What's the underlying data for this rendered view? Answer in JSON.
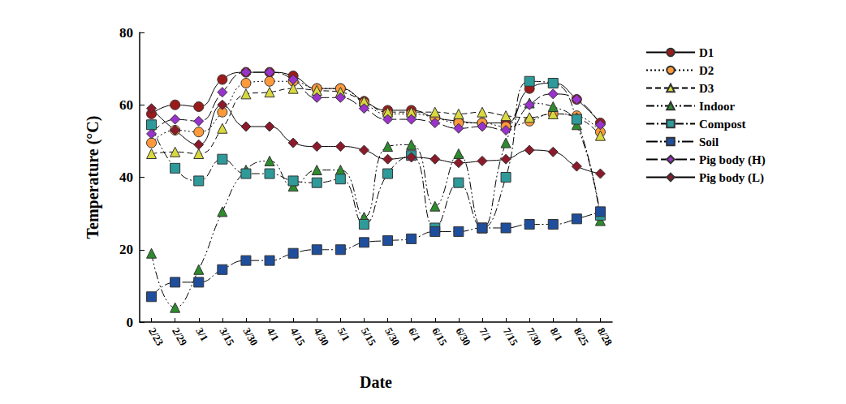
{
  "chart_data": {
    "type": "line",
    "x_label": "Date",
    "y_label": "Temperature (°C)",
    "categories": [
      "2/23",
      "2/29",
      "3/1",
      "3/15",
      "3/30",
      "4/1",
      "4/15",
      "4/30",
      "5/1",
      "5/15",
      "5/30",
      "6/1",
      "6/15",
      "6/30",
      "7/1",
      "7/15",
      "7/30",
      "8/1",
      "8/25",
      "8/28"
    ],
    "ylim": [
      0,
      80
    ],
    "yticks": [
      0,
      20,
      40,
      60,
      80
    ],
    "grid": false,
    "legend": "right",
    "series": [
      {
        "name": "D1",
        "color": "#9b1b1b",
        "marker": "circle",
        "line_style": "solid",
        "values": [
          57.5,
          60,
          59.5,
          67,
          69,
          69,
          68,
          64.5,
          64.5,
          61,
          58.5,
          58.5,
          56.5,
          55.5,
          55,
          55,
          64.5,
          66,
          61.5,
          55
        ]
      },
      {
        "name": "D2",
        "color": "#ff9a3c",
        "marker": "circle",
        "line_style": "dotted",
        "values": [
          49.5,
          53,
          52.5,
          58,
          66,
          66.5,
          66.5,
          64.5,
          64.5,
          60.5,
          57.5,
          57.5,
          56.5,
          55,
          55,
          54,
          55.5,
          57.5,
          57,
          52.5
        ]
      },
      {
        "name": "D3",
        "color": "#d9d93f",
        "marker": "triangle",
        "line_style": "dashed",
        "values": [
          46.5,
          47,
          46.5,
          53.5,
          63,
          63.5,
          64.5,
          64,
          63.5,
          61,
          58,
          58,
          58,
          57.5,
          58,
          57,
          56.5,
          57.5,
          56.5,
          51.5
        ]
      },
      {
        "name": "Indoor",
        "color": "#2e8b2e",
        "marker": "triangle",
        "line_style": "dashdotdot",
        "values": [
          19,
          4,
          14.5,
          30.5,
          42,
          44.5,
          37.5,
          42,
          42,
          29,
          48.5,
          49,
          32,
          46.5,
          26,
          49.5,
          60.5,
          59.5,
          54.5,
          28
        ]
      },
      {
        "name": "Compost",
        "color": "#2f9a9a",
        "marker": "square",
        "line_style": "dashdot",
        "values": [
          54.5,
          42.5,
          39,
          45,
          41,
          41,
          39,
          38.5,
          39.5,
          27,
          41,
          46,
          26,
          38.5,
          26,
          40,
          66.5,
          66,
          56,
          29.5
        ]
      },
      {
        "name": "Soil",
        "color": "#1f4e9c",
        "marker": "square",
        "line_style": "longdashdot",
        "values": [
          7,
          11,
          11,
          14.5,
          17,
          17,
          19,
          20,
          20,
          22,
          22.5,
          23,
          25,
          25,
          26,
          26,
          27,
          27,
          28.5,
          30.5
        ]
      },
      {
        "name": "Pig body (H)",
        "color": "#9933cc",
        "marker": "diamond",
        "line_style": "longdash",
        "values": [
          52,
          56,
          55.5,
          63.5,
          69,
          69,
          67,
          62,
          62,
          59,
          56,
          56,
          55,
          53.5,
          54,
          53,
          60,
          63,
          61.5,
          54.5
        ]
      },
      {
        "name": "Pig body (L)",
        "color": "#8b1a2b",
        "marker": "diamond",
        "line_style": "solid",
        "values": [
          59,
          53,
          49,
          60,
          54,
          54,
          49.5,
          48.5,
          48.5,
          47.5,
          45,
          45.5,
          45,
          44,
          44.5,
          45,
          47.5,
          47,
          43,
          41
        ]
      }
    ]
  }
}
